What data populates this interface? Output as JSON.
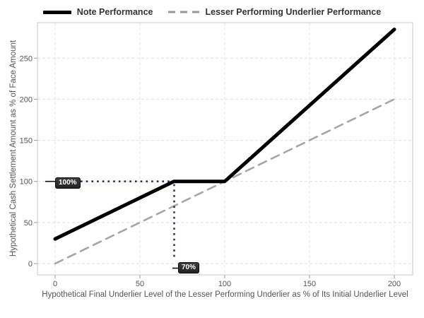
{
  "chart_data": {
    "type": "line",
    "title": "",
    "xlabel": "Hypothetical Final Underlier Level of the Lesser Performing Underlier as % of Its Initial Underlier Level",
    "ylabel": "Hypothetical Cash Settlement Amount as % of Face Amount",
    "x_ticks": [
      0,
      50,
      100,
      150,
      200
    ],
    "y_ticks": [
      0,
      50,
      100,
      150,
      200,
      250
    ],
    "xlim": [
      -10,
      211
    ],
    "ylim": [
      -15,
      296
    ],
    "grid": true,
    "legend_position": "top",
    "series": [
      {
        "name": "Note Performance",
        "color": "#000000",
        "line_style": "solid",
        "points": [
          [
            0,
            30
          ],
          [
            70,
            100
          ],
          [
            100,
            100
          ],
          [
            200,
            285
          ]
        ]
      },
      {
        "name": "Lesser Performing Underlier Performance",
        "color": "#a6a6a6",
        "line_style": "dashed",
        "points": [
          [
            0,
            0
          ],
          [
            200,
            200
          ]
        ]
      }
    ],
    "annotations": [
      {
        "label": "100%",
        "orientation": "horizontal",
        "value": 100,
        "from": 0,
        "to": 70,
        "style": "dotted"
      },
      {
        "label": "70%",
        "orientation": "vertical",
        "value": 70,
        "from": 0,
        "to": 100,
        "style": "dotted"
      }
    ]
  },
  "colors": {
    "note_line": "#000000",
    "underlier_line": "#a6a6a6",
    "annotation_dots": "#2b3550",
    "leader_line": "#111111",
    "badge_bg": "#2e2e2e",
    "badge_text": "#ffffff",
    "grid": "#e0e0e0",
    "panel_border": "#c9c9c9",
    "tick_mark": "#9a9a9a",
    "tick_text": "#555555",
    "axis_title_text": "#555555",
    "legend_text": "#333333"
  }
}
